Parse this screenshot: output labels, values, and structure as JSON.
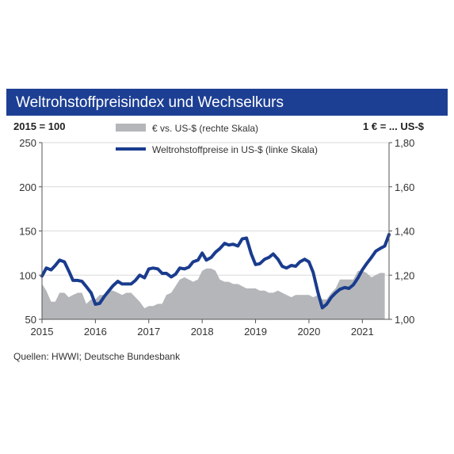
{
  "chart_data": {
    "type": "line",
    "title": "Weltrohstoffpreisindex und Wechselkurs",
    "left_axis_label": "2015 = 100",
    "right_axis_label": "1 € = ... US-$",
    "source": "Quellen: HWWI; Deutsche Bundesbank",
    "x_ticks": [
      "2015",
      "2016",
      "2017",
      "2018",
      "2019",
      "2020",
      "2021"
    ],
    "y_left_ticks": [
      "50",
      "100",
      "150",
      "200",
      "250"
    ],
    "y_right_ticks": [
      "1,00",
      "1,20",
      "1,40",
      "1,60",
      "1,80"
    ],
    "ylim_left": [
      50,
      250
    ],
    "ylim_right": [
      1.0,
      1.8
    ],
    "xlim": [
      2015.0,
      2021.5
    ],
    "grid": "horizontal",
    "series": [
      {
        "name": "€ vs. US-$ (rechte Skala)",
        "type": "area",
        "axis": "right",
        "color": "#b4b6ba",
        "x": [
          2015.0,
          2015.08,
          2015.17,
          2015.25,
          2015.33,
          2015.42,
          2015.5,
          2015.58,
          2015.67,
          2015.75,
          2015.83,
          2015.92,
          2016.0,
          2016.08,
          2016.17,
          2016.25,
          2016.33,
          2016.42,
          2016.5,
          2016.58,
          2016.67,
          2016.75,
          2016.83,
          2016.92,
          2017.0,
          2017.08,
          2017.17,
          2017.25,
          2017.33,
          2017.42,
          2017.5,
          2017.58,
          2017.67,
          2017.75,
          2017.83,
          2017.92,
          2018.0,
          2018.08,
          2018.17,
          2018.25,
          2018.33,
          2018.42,
          2018.5,
          2018.58,
          2018.67,
          2018.75,
          2018.83,
          2018.92,
          2019.0,
          2019.08,
          2019.17,
          2019.25,
          2019.33,
          2019.42,
          2019.5,
          2019.58,
          2019.67,
          2019.75,
          2019.83,
          2019.92,
          2020.0,
          2020.08,
          2020.17,
          2020.25,
          2020.33,
          2020.42,
          2020.5,
          2020.58,
          2020.67,
          2020.75,
          2020.83,
          2020.92,
          2021.0,
          2021.08,
          2021.17,
          2021.25,
          2021.33,
          2021.42
        ],
        "values": [
          1.16,
          1.13,
          1.08,
          1.08,
          1.12,
          1.12,
          1.1,
          1.11,
          1.12,
          1.12,
          1.07,
          1.09,
          1.09,
          1.11,
          1.11,
          1.13,
          1.13,
          1.12,
          1.11,
          1.12,
          1.12,
          1.1,
          1.08,
          1.05,
          1.06,
          1.06,
          1.07,
          1.07,
          1.11,
          1.12,
          1.15,
          1.18,
          1.19,
          1.18,
          1.17,
          1.18,
          1.22,
          1.23,
          1.23,
          1.22,
          1.18,
          1.17,
          1.17,
          1.16,
          1.16,
          1.15,
          1.14,
          1.14,
          1.14,
          1.13,
          1.13,
          1.12,
          1.12,
          1.13,
          1.12,
          1.11,
          1.1,
          1.11,
          1.11,
          1.11,
          1.11,
          1.1,
          1.11,
          1.09,
          1.09,
          1.12,
          1.14,
          1.18,
          1.18,
          1.18,
          1.18,
          1.22,
          1.22,
          1.21,
          1.19,
          1.2,
          1.21,
          1.21
        ]
      },
      {
        "name": "Weltrohstoffpreise in US-$ (linke Skala)",
        "type": "line",
        "axis": "left",
        "color": "#1a3c8e",
        "x": [
          2015.0,
          2015.08,
          2015.17,
          2015.25,
          2015.33,
          2015.42,
          2015.5,
          2015.58,
          2015.67,
          2015.75,
          2015.83,
          2015.92,
          2016.0,
          2016.08,
          2016.17,
          2016.25,
          2016.33,
          2016.42,
          2016.5,
          2016.58,
          2016.67,
          2016.75,
          2016.83,
          2016.92,
          2017.0,
          2017.08,
          2017.17,
          2017.25,
          2017.33,
          2017.42,
          2017.5,
          2017.58,
          2017.67,
          2017.75,
          2017.83,
          2017.92,
          2018.0,
          2018.08,
          2018.17,
          2018.25,
          2018.33,
          2018.42,
          2018.5,
          2018.58,
          2018.67,
          2018.75,
          2018.83,
          2018.92,
          2019.0,
          2019.08,
          2019.17,
          2019.25,
          2019.33,
          2019.42,
          2019.5,
          2019.58,
          2019.67,
          2019.75,
          2019.83,
          2019.92,
          2020.0,
          2020.08,
          2020.17,
          2020.25,
          2020.33,
          2020.42,
          2020.5,
          2020.58,
          2020.67,
          2020.75,
          2020.83,
          2020.92,
          2021.0,
          2021.08,
          2021.17,
          2021.25,
          2021.33,
          2021.42,
          2021.5
        ],
        "values": [
          99,
          108,
          106,
          111,
          117,
          115,
          105,
          94,
          94,
          93,
          87,
          80,
          67,
          68,
          76,
          82,
          88,
          93,
          90,
          90,
          90,
          94,
          100,
          97,
          107,
          108,
          107,
          102,
          102,
          98,
          101,
          108,
          107,
          109,
          115,
          117,
          125,
          117,
          120,
          126,
          130,
          136,
          134,
          135,
          133,
          141,
          142,
          124,
          112,
          113,
          118,
          120,
          124,
          118,
          110,
          108,
          111,
          110,
          115,
          118,
          115,
          103,
          80,
          63,
          67,
          75,
          80,
          84,
          86,
          85,
          89,
          97,
          106,
          113,
          120,
          127,
          130,
          133,
          146
        ]
      }
    ]
  }
}
